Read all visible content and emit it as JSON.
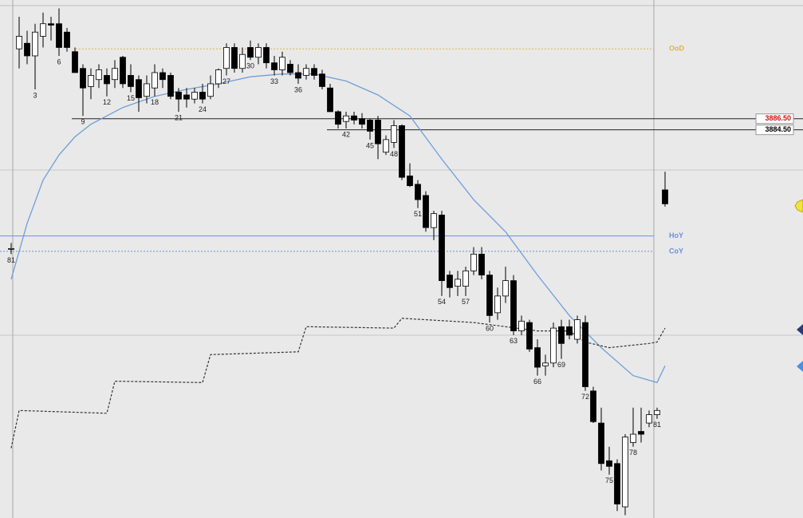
{
  "chart_data": {
    "type": "candlestick",
    "categories": [
      "81",
      null,
      null,
      "3",
      null,
      null,
      "6",
      null,
      null,
      "9",
      null,
      null,
      "12",
      null,
      null,
      "15",
      null,
      null,
      "18",
      null,
      null,
      "21",
      null,
      null,
      "24",
      null,
      null,
      "27",
      null,
      null,
      "30",
      null,
      null,
      "33",
      null,
      null,
      "36",
      null,
      null,
      null,
      null,
      null,
      "42",
      null,
      null,
      "45",
      null,
      null,
      "48",
      null,
      null,
      "51",
      null,
      null,
      "54",
      null,
      null,
      "57",
      null,
      null,
      "60",
      null,
      null,
      "63",
      null,
      null,
      "66",
      null,
      null,
      "69",
      null,
      null,
      "72",
      null,
      null,
      "75",
      null,
      null,
      "78",
      null,
      null,
      "81",
      null
    ],
    "open": [
      3863.25,
      3899,
      3900,
      3897.75,
      3901.25,
      3903.5,
      3903.5,
      3902,
      3898.5,
      3895.5,
      3892.25,
      3893.5,
      3894.25,
      3893.5,
      3897.5,
      3894.25,
      3893.5,
      3890.5,
      3892,
      3894.75,
      3894.25,
      3891.25,
      3890.75,
      3890,
      3891.25,
      3890.5,
      3892.75,
      3895.5,
      3899.25,
      3895.5,
      3899.25,
      3897.5,
      3899.25,
      3896.5,
      3895.25,
      3896.25,
      3894.75,
      3894.25,
      3895.5,
      3894.5,
      3892,
      3887.75,
      3886,
      3887,
      3886.5,
      3886.25,
      3886.25,
      3880.5,
      3882.25,
      3885.25,
      3876.25,
      3874.75,
      3872.75,
      3867,
      3869.25,
      3858.5,
      3856.5,
      3856.5,
      3859.25,
      3862.25,
      3858.5,
      3851.75,
      3854.75,
      3857.5,
      3848.5,
      3850,
      3845.5,
      3842.25,
      3842.75,
      3849.25,
      3849.25,
      3847,
      3850,
      3837.75,
      3832,
      3825.25,
      3824.75,
      3817,
      3828.5,
      3830.5,
      3832,
      3833.5,
      3873.75
    ],
    "high": [
      3864.25,
      3904.75,
      3902.25,
      3903.5,
      3905.5,
      3904.75,
      3906.25,
      3902.75,
      3899.25,
      3896.25,
      3895.5,
      3896.25,
      3895.5,
      3897,
      3897.75,
      3896.25,
      3894.25,
      3894.25,
      3896.25,
      3895.5,
      3894.75,
      3892,
      3892,
      3892,
      3892.75,
      3894.25,
      3895.5,
      3900,
      3900,
      3899.25,
      3900.5,
      3900,
      3900,
      3897.75,
      3898.5,
      3897,
      3896.25,
      3896.25,
      3896.25,
      3895.25,
      3892.75,
      3888,
      3887.75,
      3887.75,
      3887.5,
      3886.5,
      3887,
      3883.5,
      3886.25,
      3885.5,
      3878.5,
      3875.5,
      3873.5,
      3870,
      3870,
      3859.25,
      3859.25,
      3860,
      3863.5,
      3863.5,
      3859.25,
      3856.25,
      3860,
      3858.5,
      3851.25,
      3850.5,
      3847,
      3844.25,
      3850,
      3850.5,
      3850.5,
      3851.25,
      3851.25,
      3838.5,
      3834.75,
      3827.75,
      3825.5,
      3830,
      3834.75,
      3834.75,
      3834.25,
      3834.75,
      3877
    ],
    "low": [
      3862.25,
      3895.5,
      3896.25,
      3891.75,
      3899.25,
      3900.5,
      3897.75,
      3898.5,
      3894.75,
      3887,
      3890,
      3892,
      3890.5,
      3892,
      3892,
      3891.25,
      3887.75,
      3889.25,
      3890.5,
      3892,
      3890,
      3887.75,
      3888.5,
      3889.25,
      3889.25,
      3890,
      3892,
      3894.25,
      3894.75,
      3894.75,
      3897,
      3896.25,
      3895.5,
      3894.25,
      3894.25,
      3894.25,
      3892.75,
      3893.5,
      3893.5,
      3891.75,
      3887.75,
      3884.75,
      3884.75,
      3885.5,
      3884.75,
      3882.75,
      3879.25,
      3880,
      3881.25,
      3875.5,
      3874.25,
      3870.5,
      3866.25,
      3864.75,
      3854.75,
      3854.5,
      3854.75,
      3854.75,
      3858.5,
      3857.75,
      3850,
      3850.5,
      3853.5,
      3847.75,
      3847.75,
      3844.75,
      3840.5,
      3840.5,
      3842,
      3843.5,
      3847,
      3846.25,
      3837.75,
      3832,
      3823.5,
      3822.75,
      3816.25,
      3815.5,
      3827.75,
      3828.5,
      3831.25,
      3832.75,
      3870.75
    ],
    "close": [
      3863.25,
      3901.25,
      3897.75,
      3902,
      3903.5,
      3903.25,
      3899.25,
      3899.25,
      3894.75,
      3892,
      3894.25,
      3895.25,
      3892.75,
      3895.5,
      3892.75,
      3892.25,
      3890.25,
      3892.75,
      3894.75,
      3893.5,
      3890.5,
      3890,
      3890,
      3891.25,
      3890,
      3892.75,
      3895.25,
      3899.25,
      3895.5,
      3898,
      3897.5,
      3899.25,
      3896.5,
      3895.25,
      3897.5,
      3894.75,
      3893.75,
      3895.5,
      3894.25,
      3892.25,
      3887.75,
      3885.5,
      3887,
      3886.25,
      3885.5,
      3884.25,
      3882,
      3882.75,
      3885.25,
      3876,
      3874.5,
      3872,
      3867,
      3869.5,
      3857.5,
      3856.25,
      3857.75,
      3859.25,
      3862.25,
      3858.5,
      3851.25,
      3854.75,
      3857.5,
      3848.5,
      3850.25,
      3845.25,
      3842,
      3842.75,
      3849,
      3846.25,
      3847.75,
      3850.5,
      3838.5,
      3832.25,
      3824.75,
      3824.25,
      3817.5,
      3829.5,
      3830,
      3830,
      3833.5,
      3834.25,
      3871.25
    ],
    "up_color": "#ffffff",
    "down_color": "#000000",
    "ylim": [
      3815,
      3907.75
    ],
    "lines": [
      {
        "color": "#6f9fd8",
        "dashed": false,
        "x": [
          0,
          2,
          4,
          6,
          8,
          10,
          14,
          18,
          22,
          26,
          30,
          34,
          38,
          42,
          46,
          50,
          54,
          58,
          62,
          66,
          70,
          74,
          78,
          81,
          82
        ],
        "values": [
          3857.75,
          3867.75,
          3875.5,
          3880,
          3883.25,
          3885.5,
          3888.5,
          3890.5,
          3891.75,
          3892.75,
          3894,
          3894.5,
          3894.5,
          3893.25,
          3890.75,
          3887,
          3879.25,
          3872,
          3866.25,
          3858.5,
          3851.25,
          3845.5,
          3840.5,
          3839.25,
          3842.25
        ]
      },
      {
        "color": "#333333",
        "dashed": true,
        "x": [
          0,
          1,
          12,
          13,
          24,
          25,
          36,
          37,
          48,
          49,
          58,
          62,
          66,
          70,
          72,
          75,
          80,
          81,
          82
        ],
        "values": [
          3827.5,
          3834.25,
          3833.75,
          3839.5,
          3839.25,
          3844.25,
          3844.75,
          3849.25,
          3849,
          3850.75,
          3850,
          3849.25,
          3848.5,
          3848.5,
          3846.5,
          3845.5,
          3846.25,
          3846.5,
          3849
        ]
      }
    ],
    "levels": [
      {
        "label": "OoD",
        "value": 3899,
        "color": "#e0b24a",
        "dashed": true
      },
      {
        "label": "HoY",
        "value": 3865.5,
        "color": "#6b8fe0",
        "dashed": false
      },
      {
        "label": "CoY",
        "value": 3862.75,
        "color": "#6b8fe0",
        "dashed": true
      }
    ],
    "price_lines": [
      {
        "value": 3886.5,
        "value_label": "3886.50",
        "color": "#d01010",
        "from": 9
      },
      {
        "value": 3884.5,
        "value_label": "3884.50",
        "color": "#000000",
        "from": 41
      }
    ]
  }
}
